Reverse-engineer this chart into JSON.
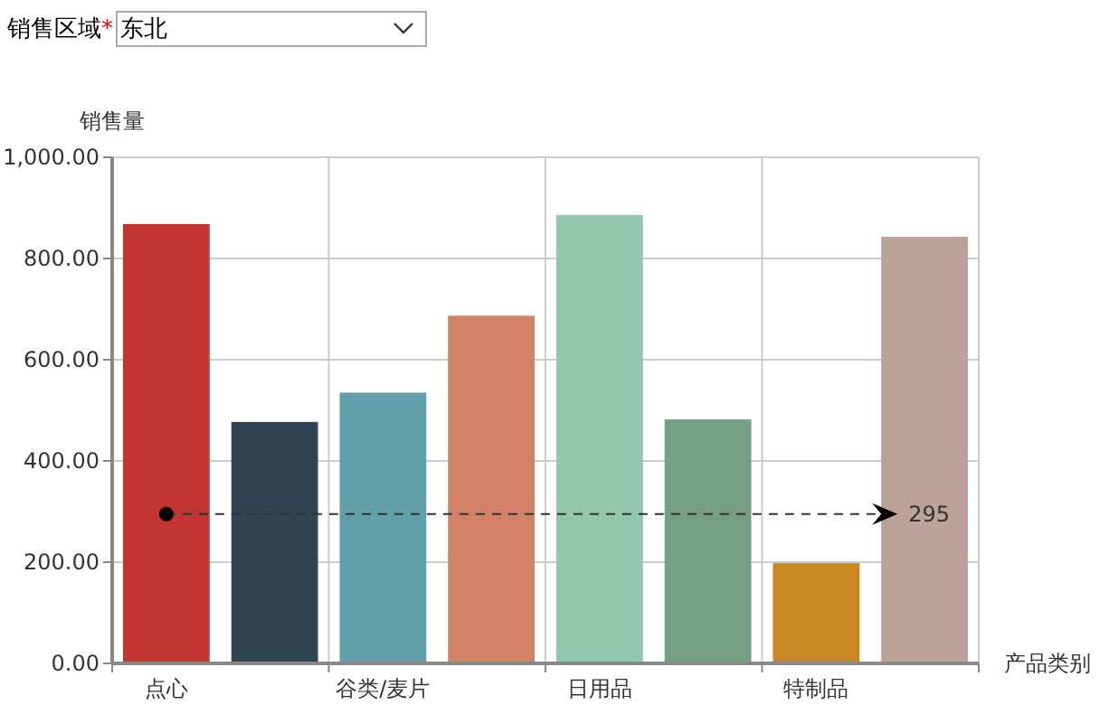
{
  "chart_data": {
    "type": "bar",
    "xlabel": "产品类别",
    "ylabel": "销售量",
    "categories": [
      "点心",
      null,
      "谷类/麦片",
      null,
      "日用品",
      null,
      "特制品",
      null
    ],
    "values": [
      868,
      477,
      535,
      687,
      886,
      482,
      198,
      843
    ],
    "colors": [
      "#c23531",
      "#2f4554",
      "#61a0a8",
      "#d48265",
      "#91c7ae",
      "#749f83",
      "#ca8622",
      "#bda29a"
    ],
    "ylim": [
      0,
      1000
    ],
    "yticks": [
      {
        "value": 0,
        "label": "0.00"
      },
      {
        "value": 200,
        "label": "200.00"
      },
      {
        "value": 400,
        "label": "400.00"
      },
      {
        "value": 600,
        "label": "600.00"
      },
      {
        "value": 800,
        "label": "800.00"
      },
      {
        "value": 1000,
        "label": "1,000.00"
      }
    ],
    "grid": true,
    "ref_lines": [
      {
        "axis": "y",
        "value": 295,
        "label": "295",
        "color": "#333333",
        "line_style": "dashed"
      }
    ],
    "annotations": [
      "销售区域",
      "*",
      "东北"
    ]
  }
}
